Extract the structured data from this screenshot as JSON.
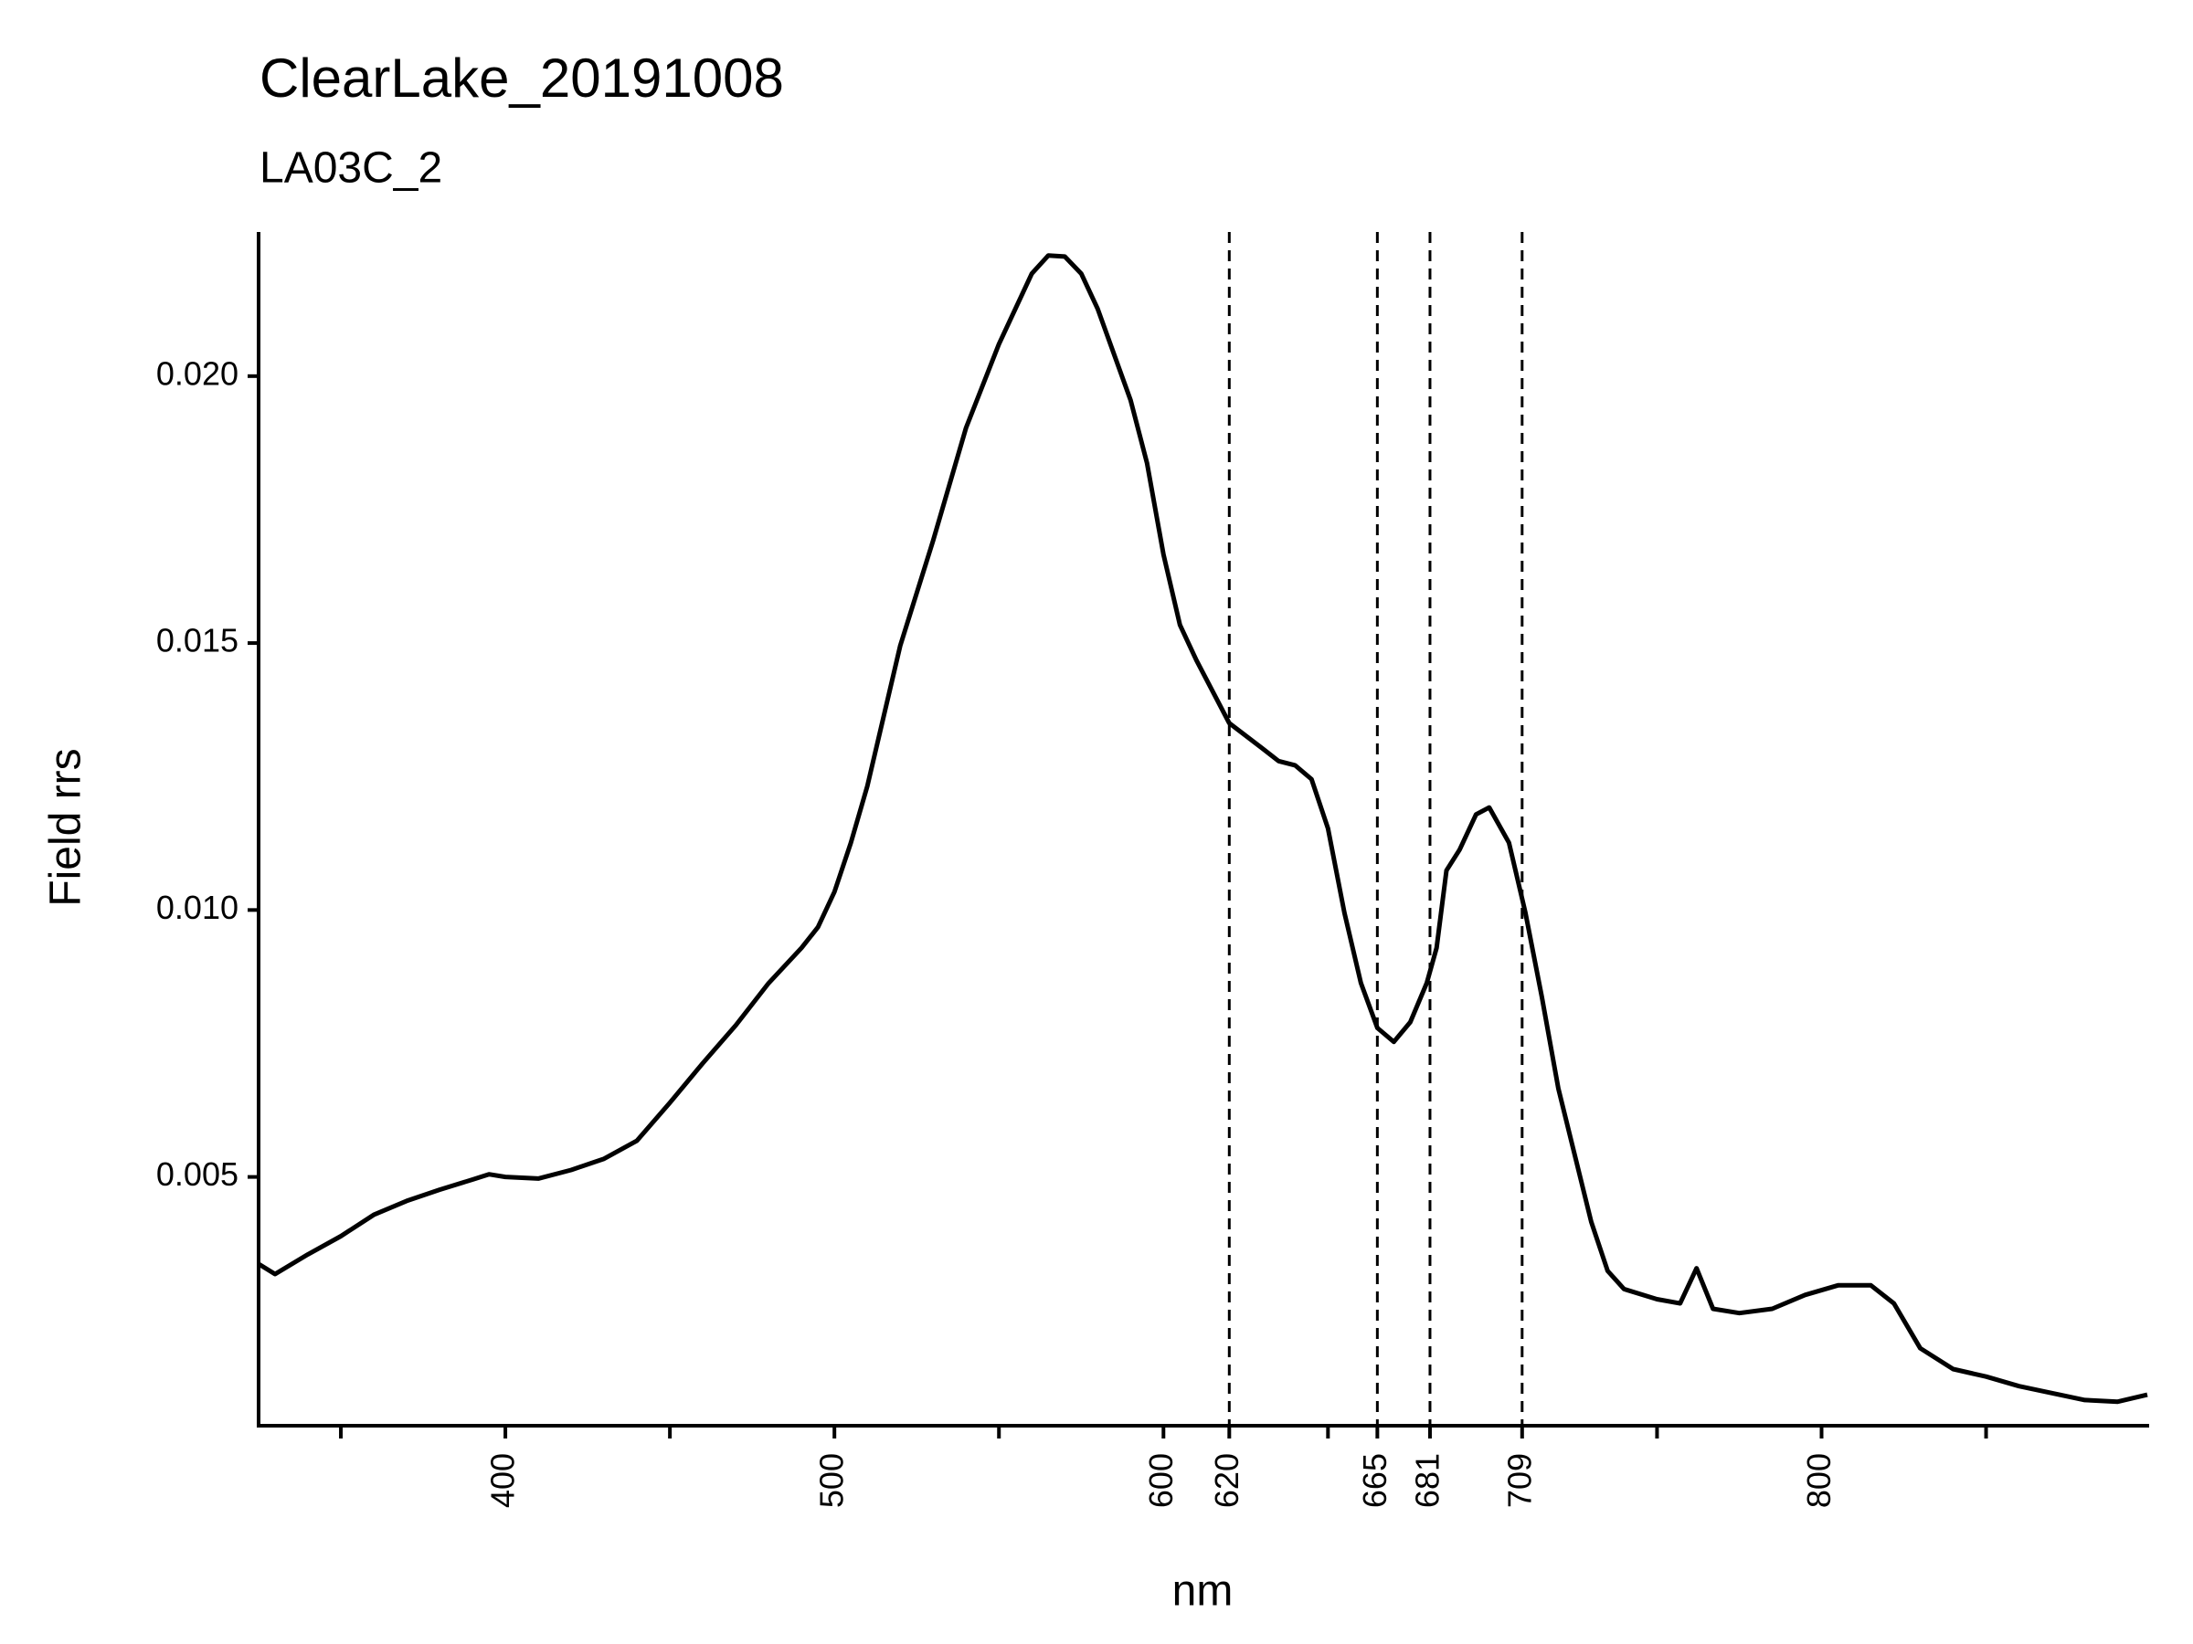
{
  "chart_data": {
    "type": "line",
    "title": "ClearLake_20191008",
    "subtitle": "LA03C_2",
    "xlabel": "nm",
    "ylabel": "Field rrs",
    "x": [
      325,
      330,
      340,
      350,
      360,
      370,
      380,
      390,
      395,
      400,
      410,
      420,
      430,
      440,
      450,
      460,
      470,
      480,
      490,
      495,
      500,
      505,
      510,
      520,
      530,
      540,
      550,
      560,
      565,
      570,
      575,
      580,
      590,
      595,
      600,
      605,
      610,
      620,
      630,
      635,
      640,
      645,
      650,
      655,
      660,
      665,
      670,
      675,
      680,
      683,
      686,
      690,
      695,
      699,
      705,
      710,
      715,
      720,
      730,
      735,
      740,
      750,
      757,
      762,
      767,
      775,
      785,
      795,
      805,
      815,
      822,
      830,
      840,
      850,
      860,
      870,
      880,
      890,
      899
    ],
    "series": [
      {
        "color": "#000000",
        "values": [
          0.00337,
          0.00318,
          0.00355,
          0.00389,
          0.00429,
          0.00455,
          0.00476,
          0.00495,
          0.00505,
          0.005,
          0.00497,
          0.00513,
          0.00534,
          0.00568,
          0.00639,
          0.00713,
          0.00784,
          0.00863,
          0.00929,
          0.00968,
          0.01034,
          0.01126,
          0.01232,
          0.01495,
          0.01692,
          0.01903,
          0.0206,
          0.02192,
          0.02226,
          0.02224,
          0.02192,
          0.02126,
          0.01955,
          0.01837,
          0.01666,
          0.01534,
          0.01468,
          0.0135,
          0.01303,
          0.01279,
          0.01271,
          0.01245,
          0.01153,
          0.00995,
          0.00863,
          0.00779,
          0.00753,
          0.0079,
          0.00863,
          0.00929,
          0.01074,
          0.01113,
          0.01179,
          0.01192,
          0.01126,
          0.00995,
          0.00837,
          0.00666,
          0.00416,
          0.00324,
          0.0029,
          0.00271,
          0.00263,
          0.00329,
          0.00253,
          0.00245,
          0.00253,
          0.00279,
          0.00297,
          0.00297,
          0.00263,
          0.00179,
          0.0014,
          0.00126,
          0.00108,
          0.00095,
          0.00082,
          0.00079,
          0.00092
        ]
      }
    ],
    "vlines": [
      620,
      665,
      681,
      709
    ],
    "xlim": [
      325,
      899
    ],
    "ylim": [
      0.00034,
      0.0227
    ],
    "xticks": [
      {
        "value": 350,
        "label": null
      },
      400,
      {
        "value": 450,
        "label": null
      },
      500,
      {
        "value": 550,
        "label": null
      },
      600,
      620,
      {
        "value": 650,
        "label": null
      },
      665,
      681,
      709,
      {
        "value": 750,
        "label": null
      },
      800,
      {
        "value": 850,
        "label": null
      }
    ],
    "yticks": [
      0.005,
      {
        "value": 0.01,
        "label": "0.010"
      },
      0.015,
      {
        "value": 0.02,
        "label": "0.020"
      }
    ]
  }
}
